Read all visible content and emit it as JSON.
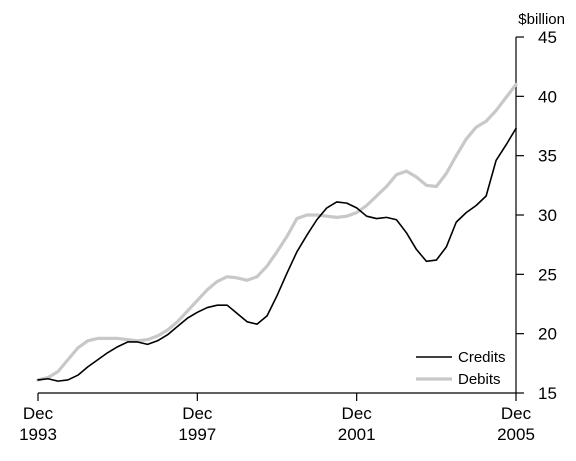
{
  "chart_data": {
    "type": "line",
    "title": "",
    "xlabel": "",
    "ylabel": "$billion",
    "ylim": [
      15,
      45
    ],
    "yticks": [
      15,
      20,
      25,
      30,
      35,
      40,
      45
    ],
    "xlim": [
      1993.92,
      2005.92
    ],
    "xticks": [
      {
        "x": 1993.92,
        "line1": "Dec",
        "line2": "1993"
      },
      {
        "x": 1997.92,
        "line1": "Dec",
        "line2": "1997"
      },
      {
        "x": 2001.92,
        "line1": "Dec",
        "line2": "2001"
      },
      {
        "x": 2005.92,
        "line1": "Dec",
        "line2": "2005"
      }
    ],
    "grid": false,
    "legend_position": "bottom-right",
    "series": [
      {
        "name": "Credits",
        "color": "#000000",
        "x": [
          1993.92,
          1994.17,
          1994.42,
          1994.67,
          1994.92,
          1995.17,
          1995.42,
          1995.67,
          1995.92,
          1996.17,
          1996.42,
          1996.67,
          1996.92,
          1997.17,
          1997.42,
          1997.67,
          1997.92,
          1998.17,
          1998.42,
          1998.67,
          1998.92,
          1999.17,
          1999.42,
          1999.67,
          1999.92,
          2000.17,
          2000.42,
          2000.67,
          2000.92,
          2001.17,
          2001.42,
          2001.67,
          2001.92,
          2002.17,
          2002.42,
          2002.67,
          2002.92,
          2003.17,
          2003.42,
          2003.67,
          2003.92,
          2004.17,
          2004.42,
          2004.67,
          2004.92,
          2005.17,
          2005.42,
          2005.67,
          2005.92
        ],
        "values": [
          16.1,
          16.2,
          16.0,
          16.1,
          16.5,
          17.2,
          17.8,
          18.4,
          18.9,
          19.3,
          19.3,
          19.1,
          19.4,
          19.9,
          20.6,
          21.3,
          21.8,
          22.2,
          22.4,
          22.4,
          21.7,
          21.0,
          20.8,
          21.5,
          23.2,
          25.1,
          26.9,
          28.3,
          29.6,
          30.6,
          31.1,
          31.0,
          30.6,
          29.9,
          29.7,
          29.8,
          29.6,
          28.5,
          27.1,
          26.1,
          26.2,
          27.3,
          29.4,
          30.2,
          30.8,
          31.6,
          34.6,
          35.9,
          37.3
        ]
      },
      {
        "name": "Debits",
        "color": "#c8c8c8",
        "x": [
          1993.92,
          1994.17,
          1994.42,
          1994.67,
          1994.92,
          1995.17,
          1995.42,
          1995.67,
          1995.92,
          1996.17,
          1996.42,
          1996.67,
          1996.92,
          1997.17,
          1997.42,
          1997.67,
          1997.92,
          1998.17,
          1998.42,
          1998.67,
          1998.92,
          1999.17,
          1999.42,
          1999.67,
          1999.92,
          2000.17,
          2000.42,
          2000.67,
          2000.92,
          2001.17,
          2001.42,
          2001.67,
          2001.92,
          2002.17,
          2002.42,
          2002.67,
          2002.92,
          2003.17,
          2003.42,
          2003.67,
          2003.92,
          2004.17,
          2004.42,
          2004.67,
          2004.92,
          2005.17,
          2005.42,
          2005.67,
          2005.92
        ],
        "values": [
          16.1,
          16.3,
          16.8,
          17.8,
          18.8,
          19.4,
          19.6,
          19.6,
          19.6,
          19.5,
          19.4,
          19.5,
          19.8,
          20.3,
          21.0,
          21.9,
          22.8,
          23.7,
          24.4,
          24.8,
          24.7,
          24.5,
          24.8,
          25.7,
          26.9,
          28.2,
          29.7,
          30.0,
          30.0,
          29.9,
          29.8,
          29.9,
          30.2,
          30.8,
          31.6,
          32.4,
          33.4,
          33.7,
          33.2,
          32.5,
          32.4,
          33.5,
          35.0,
          36.4,
          37.4,
          37.9,
          38.8,
          39.9,
          41.0
        ]
      }
    ]
  }
}
